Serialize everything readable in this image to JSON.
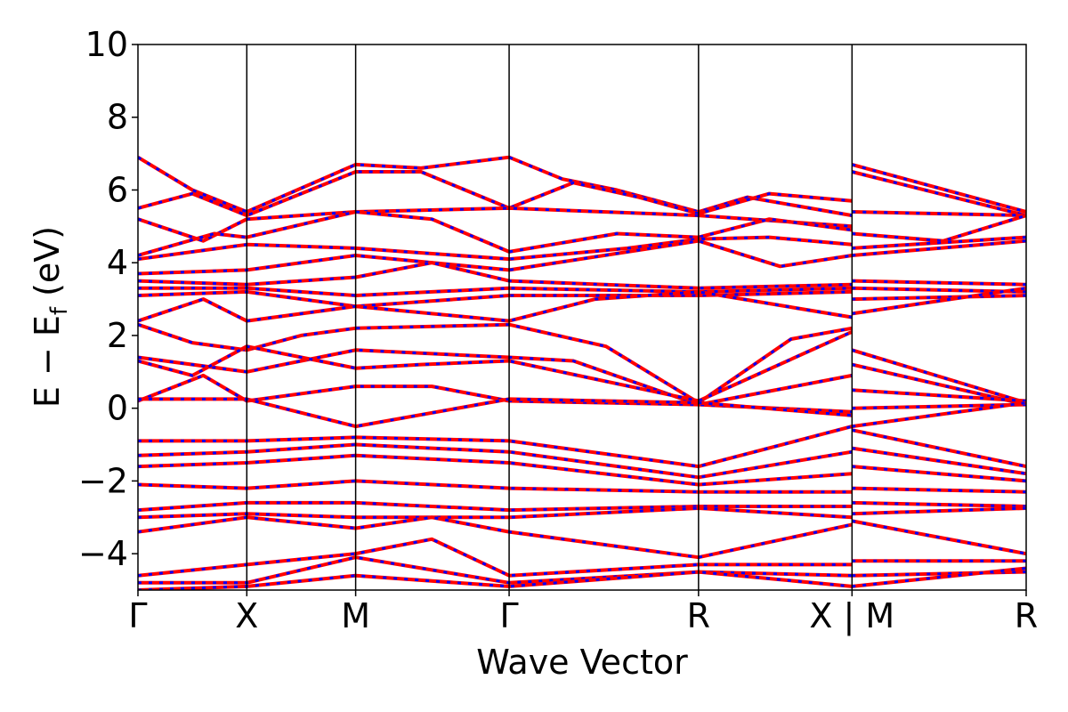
{
  "chart_data": {
    "type": "line",
    "xlabel": "Wave Vector",
    "ylabel": "E − E",
    "ylabel_sub": "f",
    "ylabel_unit": " (eV)",
    "ylim": [
      -5,
      10
    ],
    "yticks": [
      -4,
      -2,
      0,
      2,
      4,
      6,
      8,
      10
    ],
    "ytick_labels": [
      "−4",
      "−2",
      "0",
      "2",
      "4",
      "6",
      "8",
      "10"
    ],
    "kpath_positions": [
      0,
      1,
      2,
      3.41,
      5.15,
      6.56,
      8.16
    ],
    "kpath_labels": [
      "Γ",
      "X",
      "M",
      "Γ",
      "R",
      "X | M",
      "R"
    ],
    "segment_separators": [
      1,
      2,
      3.41,
      5.15,
      6.56
    ],
    "grid": false,
    "legend": "none",
    "series_styles": [
      {
        "color": "#ff0000",
        "style": "solid"
      },
      {
        "color": "#0000ff",
        "style": "dashed"
      }
    ],
    "band_groups": [
      {
        "name": "",
        "nodes": [
          [
            0,
            6.9,
            0.5,
            6.0,
            1,
            5.4,
            2,
            6.7,
            2.6,
            6.6,
            3.41,
            6.9,
            3.9,
            6.3,
            4.4,
            6.0,
            5.15,
            5.4,
            5.6,
            5.8,
            6.56,
            5.3,
            6.56,
            6.7,
            8.16,
            5.4
          ],
          [
            0,
            5.5,
            0.5,
            5.9,
            1,
            5.3,
            2,
            6.5,
            2.6,
            6.5,
            3.41,
            5.5,
            4.0,
            6.2,
            4.6,
            5.8,
            5.15,
            5.35,
            5.8,
            5.9,
            6.56,
            5.7,
            6.56,
            6.5,
            8.16,
            5.3
          ],
          [
            0,
            5.2,
            0.6,
            4.6,
            1,
            5.2,
            2,
            5.4,
            3.41,
            5.5,
            5.15,
            5.3,
            6.56,
            5.0,
            6.56,
            5.4,
            8.16,
            5.3
          ],
          [
            0,
            4.2,
            0.7,
            4.8,
            1,
            4.7,
            2,
            5.4,
            2.7,
            5.2,
            3.41,
            4.3,
            4.4,
            4.8,
            5.15,
            4.7,
            5.8,
            5.2,
            6.56,
            4.9,
            6.56,
            4.8,
            7.4,
            4.6,
            8.16,
            5.3
          ],
          [
            0,
            4.1,
            1,
            4.5,
            2,
            4.4,
            3.41,
            4.1,
            4.5,
            4.4,
            5.15,
            4.65,
            5.8,
            4.7,
            6.56,
            4.5,
            6.56,
            4.4,
            8.16,
            4.7
          ],
          [
            0,
            3.7,
            1,
            3.8,
            2,
            4.2,
            3.41,
            3.8,
            5.15,
            4.6,
            5.9,
            3.9,
            6.56,
            4.2,
            6.56,
            4.2,
            8.16,
            4.6
          ],
          [
            0,
            3.5,
            1,
            3.4,
            2,
            3.6,
            2.7,
            4.0,
            3.41,
            3.5,
            5.15,
            3.3,
            6.56,
            3.4,
            6.56,
            3.5,
            8.16,
            3.4
          ],
          [
            0,
            3.3,
            1,
            3.3,
            2,
            3.1,
            3.41,
            3.3,
            5.15,
            3.2,
            6.56,
            3.3,
            6.56,
            3.3,
            8.16,
            3.2
          ],
          [
            0,
            3.1,
            1,
            3.2,
            2,
            2.8,
            3.41,
            3.1,
            5.15,
            3.1,
            6.56,
            3.2,
            6.56,
            3.0,
            8.16,
            3.1
          ],
          [
            0,
            2.4,
            0.6,
            3.0,
            1,
            2.4,
            2,
            2.8,
            3.41,
            2.4,
            4.2,
            3.0,
            5.15,
            3.2,
            6.56,
            2.5,
            6.56,
            2.6,
            8.16,
            3.3
          ],
          [
            0,
            2.3,
            0.5,
            1.8,
            1,
            1.6,
            1.5,
            2.0,
            2,
            2.2,
            3.41,
            2.3,
            4.3,
            1.7,
            5.15,
            0.15,
            6.0,
            1.9,
            6.56,
            2.2,
            6.56,
            1.6,
            8.16,
            0.15
          ],
          [
            0,
            1.4,
            1,
            1.0,
            2,
            1.6,
            3.41,
            1.4,
            4.0,
            1.3,
            5.15,
            0.1,
            6.56,
            0.9,
            6.56,
            1.2,
            8.16,
            0.1
          ],
          [
            0,
            1.3,
            0.5,
            0.9,
            1,
            1.7,
            2,
            1.1,
            2.6,
            1.2,
            3.41,
            1.3,
            5.15,
            0.2,
            6.56,
            2.1,
            6.56,
            0.5,
            8.16,
            0.2
          ],
          [
            0,
            0.2,
            0.6,
            0.9,
            1,
            0.2,
            2,
            0.6,
            2.7,
            0.6,
            3.41,
            0.2,
            5.15,
            0.1,
            6.56,
            -0.1,
            6.56,
            0.0,
            8.16,
            0.1
          ],
          [
            0,
            0.25,
            1,
            0.25,
            2,
            -0.5,
            3.41,
            0.25,
            5.15,
            0.15,
            6.56,
            -0.2,
            6.56,
            -0.5,
            8.16,
            0.15
          ],
          [
            0,
            -0.9,
            1,
            -0.9,
            2,
            -0.8,
            3.41,
            -0.9,
            5.15,
            -1.6,
            6.56,
            -0.5,
            6.56,
            -0.6,
            8.16,
            -1.6
          ],
          [
            0,
            -1.3,
            1,
            -1.2,
            2,
            -1.0,
            3.41,
            -1.2,
            5.15,
            -1.9,
            6.56,
            -1.2,
            6.56,
            -1.1,
            8.16,
            -1.8
          ],
          [
            0,
            -1.6,
            1,
            -1.5,
            2,
            -1.3,
            3.41,
            -1.5,
            5.15,
            -2.1,
            6.56,
            -1.8,
            6.56,
            -1.6,
            8.16,
            -2.0
          ],
          [
            0,
            -2.1,
            1,
            -2.2,
            2,
            -2.0,
            3.41,
            -2.2,
            5.15,
            -2.3,
            6.56,
            -2.3,
            6.56,
            -2.2,
            8.16,
            -2.3
          ],
          [
            0,
            -2.8,
            1,
            -2.6,
            2,
            -2.6,
            3.41,
            -2.8,
            5.15,
            -2.7,
            6.56,
            -2.7,
            6.56,
            -2.6,
            8.16,
            -2.7
          ],
          [
            0,
            -3.0,
            1,
            -2.9,
            2,
            -3.0,
            3.41,
            -3.0,
            5.15,
            -2.75,
            6.56,
            -3.0,
            6.56,
            -2.9,
            8.16,
            -2.75
          ],
          [
            0,
            -3.4,
            1,
            -3.0,
            2,
            -3.3,
            2.7,
            -3.0,
            3.41,
            -3.4,
            5.15,
            -4.1,
            6.56,
            -3.2,
            6.56,
            -3.1,
            8.16,
            -4.0
          ],
          [
            0,
            -4.6,
            1,
            -4.3,
            2,
            -4.0,
            2.7,
            -3.6,
            3.41,
            -4.6,
            5.15,
            -4.3,
            6.56,
            -4.3,
            6.56,
            -4.2,
            8.16,
            -4.2
          ],
          [
            0,
            -4.8,
            1,
            -4.8,
            2,
            -4.1,
            3.41,
            -4.8,
            5.15,
            -4.5,
            6.56,
            -4.6,
            6.56,
            -4.6,
            8.16,
            -4.5
          ],
          [
            0,
            -5.0,
            1,
            -4.9,
            2,
            -4.6,
            3.41,
            -4.9,
            5.15,
            -4.5,
            6.56,
            -4.9,
            6.56,
            -4.9,
            8.16,
            -4.4
          ]
        ]
      }
    ]
  }
}
